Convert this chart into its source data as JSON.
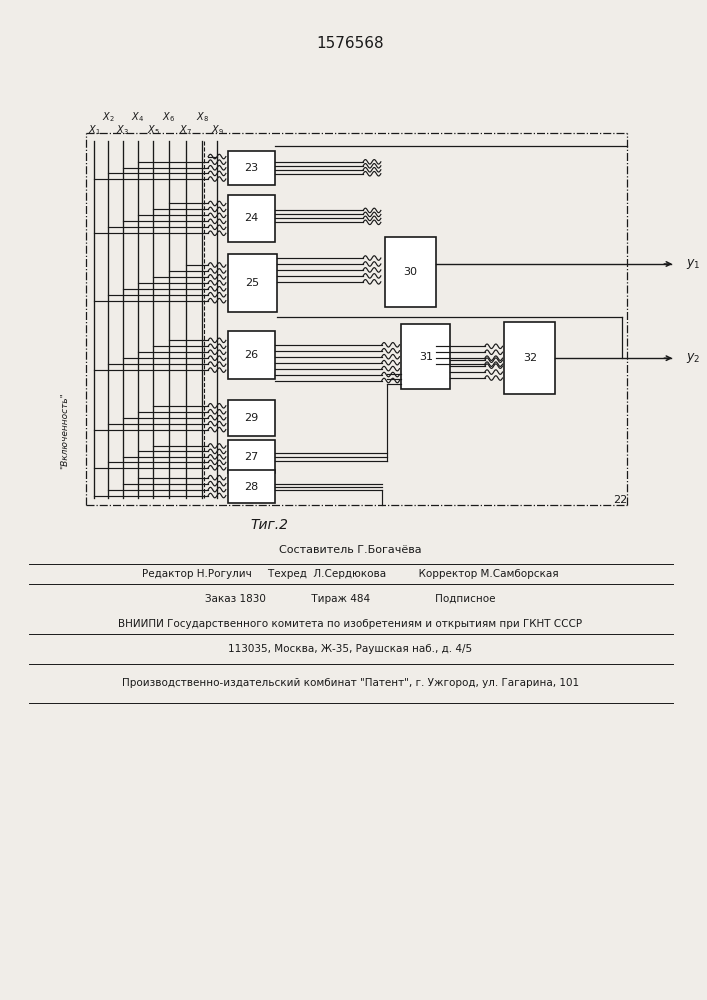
{
  "patent_number": "1576568",
  "fig_label": "Τиг.2",
  "bg_color": "#f0ede8",
  "line_color": "#1a1a1a",
  "composer": "Составитель Г.Богачёва",
  "editor_line": "Редактор Н.Рогулич     Техред  Л.Сердюкова          Корректор М.Самборская",
  "order_line": "Заказ 1830              Тираж 484                    Подписное",
  "vnipi_line": "ВНИИПИ Государственного комитета по изобретениям и открытиям при ГКНТ СССР",
  "address_line": "113035, Москва, Ж-35, Раушская наб., д. 4/5",
  "plant_line": "Производственно-издательский комбинат \"Патент\", г. Ужгород, ул. Гагарина, 101",
  "vklyuchennost": "\"Включенность\""
}
